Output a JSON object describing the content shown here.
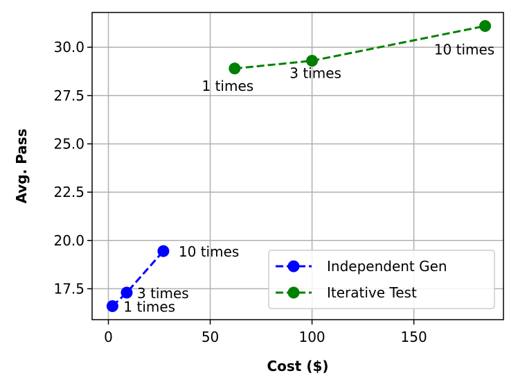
{
  "chart_data": {
    "type": "line",
    "title": "",
    "xlabel": "Cost ($)",
    "ylabel": "Avg. Pass",
    "xlim": [
      -8,
      194
    ],
    "ylim": [
      15.9,
      31.8
    ],
    "xticks": [
      0,
      50,
      100,
      150
    ],
    "xtick_labels": [
      "0",
      "50",
      "100",
      "150"
    ],
    "yticks": [
      17.5,
      20.0,
      22.5,
      25.0,
      27.5,
      30.0
    ],
    "ytick_labels": [
      "17.5",
      "20.0",
      "22.5",
      "25.0",
      "27.5",
      "30.0"
    ],
    "grid": true,
    "legend_position": "lower-right",
    "series": [
      {
        "name": "Independent Gen",
        "color": "#0000ff",
        "linestyle": "dashed",
        "marker": "circle",
        "points": [
          {
            "x": 2,
            "y": 16.6,
            "label": "1 times"
          },
          {
            "x": 9,
            "y": 17.3,
            "label": "3 times"
          },
          {
            "x": 27,
            "y": 19.45,
            "label": "10 times"
          }
        ]
      },
      {
        "name": "Iterative Test",
        "color": "#008000",
        "linestyle": "dashed",
        "marker": "circle",
        "points": [
          {
            "x": 62,
            "y": 28.9,
            "label": "1 times"
          },
          {
            "x": 100,
            "y": 29.3,
            "label": "3 times"
          },
          {
            "x": 185,
            "y": 31.1,
            "label": "10 times"
          }
        ]
      }
    ]
  }
}
